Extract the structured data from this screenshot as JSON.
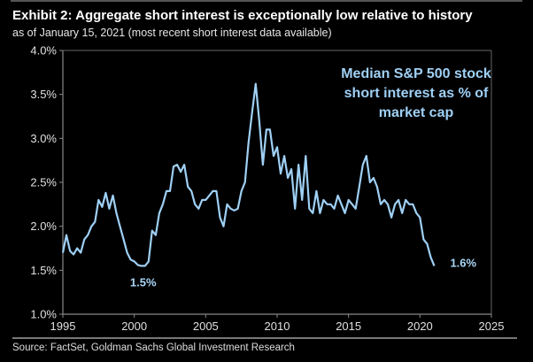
{
  "header": {
    "title": "Exhibit 2: Aggregate short interest is exceptionally low relative to history",
    "subtitle": "as of January 15, 2021 (most recent short interest data available)"
  },
  "footer": {
    "source": "Source: FactSet, Goldman Sachs Global Investment Research"
  },
  "chart_data": {
    "type": "line",
    "title": "Exhibit 2: Aggregate short interest is exceptionally low relative to history",
    "subtitle": "as of January 15, 2021 (most recent short interest data available)",
    "xlabel": "",
    "ylabel": "",
    "xlim": [
      1995,
      2025
    ],
    "ylim": [
      1.0,
      4.0
    ],
    "x_ticks": [
      1995,
      2000,
      2005,
      2010,
      2015,
      2020,
      2025
    ],
    "x_tick_labels": [
      "1995",
      "2000",
      "2005",
      "2010",
      "2015",
      "2020",
      "2025"
    ],
    "y_ticks": [
      1.0,
      1.5,
      2.0,
      2.5,
      3.0,
      3.5,
      4.0
    ],
    "y_tick_labels": [
      "1.0%",
      "1.5%",
      "2.0%",
      "2.5%",
      "3.0%",
      "3.5%",
      "4.0%"
    ],
    "grid": false,
    "legend": "none",
    "series_color": "#9fd0f5",
    "series": [
      {
        "name": "Median S&P 500 stock short interest as % of market cap",
        "x": [
          1995.0,
          1995.25,
          1995.5,
          1995.75,
          1996.0,
          1996.25,
          1996.5,
          1996.75,
          1997.0,
          1997.25,
          1997.5,
          1997.75,
          1998.0,
          1998.25,
          1998.5,
          1998.75,
          1999.0,
          1999.25,
          1999.5,
          1999.75,
          2000.0,
          2000.25,
          2000.5,
          2000.75,
          2001.0,
          2001.25,
          2001.5,
          2001.75,
          2002.0,
          2002.25,
          2002.5,
          2002.75,
          2003.0,
          2003.25,
          2003.5,
          2003.75,
          2004.0,
          2004.25,
          2004.5,
          2004.75,
          2005.0,
          2005.25,
          2005.5,
          2005.75,
          2006.0,
          2006.25,
          2006.5,
          2006.75,
          2007.0,
          2007.25,
          2007.5,
          2007.75,
          2008.0,
          2008.25,
          2008.5,
          2008.75,
          2009.0,
          2009.25,
          2009.5,
          2009.75,
          2010.0,
          2010.25,
          2010.5,
          2010.75,
          2011.0,
          2011.25,
          2011.5,
          2011.75,
          2012.0,
          2012.25,
          2012.5,
          2012.75,
          2013.0,
          2013.25,
          2013.5,
          2013.75,
          2014.0,
          2014.25,
          2014.5,
          2014.75,
          2015.0,
          2015.25,
          2015.5,
          2015.75,
          2016.0,
          2016.25,
          2016.5,
          2016.75,
          2017.0,
          2017.25,
          2017.5,
          2017.75,
          2018.0,
          2018.25,
          2018.5,
          2018.75,
          2019.0,
          2019.25,
          2019.5,
          2019.75,
          2020.0,
          2020.25,
          2020.5,
          2020.75,
          2021.0
        ],
        "values": [
          1.7,
          1.9,
          1.72,
          1.68,
          1.75,
          1.7,
          1.85,
          1.9,
          2.0,
          2.05,
          2.3,
          2.22,
          2.38,
          2.2,
          2.35,
          2.15,
          2.0,
          1.85,
          1.7,
          1.62,
          1.6,
          1.56,
          1.55,
          1.55,
          1.6,
          1.95,
          1.9,
          2.15,
          2.25,
          2.4,
          2.4,
          2.68,
          2.7,
          2.62,
          2.7,
          2.45,
          2.4,
          2.25,
          2.2,
          2.3,
          2.3,
          2.35,
          2.4,
          2.4,
          2.1,
          2.0,
          2.25,
          2.2,
          2.18,
          2.2,
          2.4,
          2.5,
          2.95,
          3.3,
          3.62,
          3.2,
          2.7,
          3.1,
          3.1,
          2.8,
          2.9,
          2.6,
          2.8,
          2.55,
          2.65,
          2.2,
          2.7,
          2.3,
          2.8,
          2.2,
          2.15,
          2.4,
          2.15,
          2.3,
          2.25,
          2.25,
          2.2,
          2.35,
          2.25,
          2.15,
          2.3,
          2.25,
          2.2,
          2.45,
          2.7,
          2.8,
          2.5,
          2.55,
          2.45,
          2.25,
          2.3,
          2.25,
          2.1,
          2.25,
          2.3,
          2.15,
          2.3,
          2.25,
          2.25,
          2.15,
          2.1,
          1.85,
          1.8,
          1.65,
          1.55
        ]
      }
    ],
    "annotations": [
      {
        "text": "Median S&P 500 stock short interest as % of market cap",
        "lines": [
          "Median S&P 500 stock",
          "short interest as % of",
          "market cap"
        ]
      },
      {
        "text": "1.5%",
        "x": 2000.5,
        "y": 1.5
      },
      {
        "text": "1.6%",
        "x": 2021.0,
        "y": 1.6
      }
    ]
  }
}
